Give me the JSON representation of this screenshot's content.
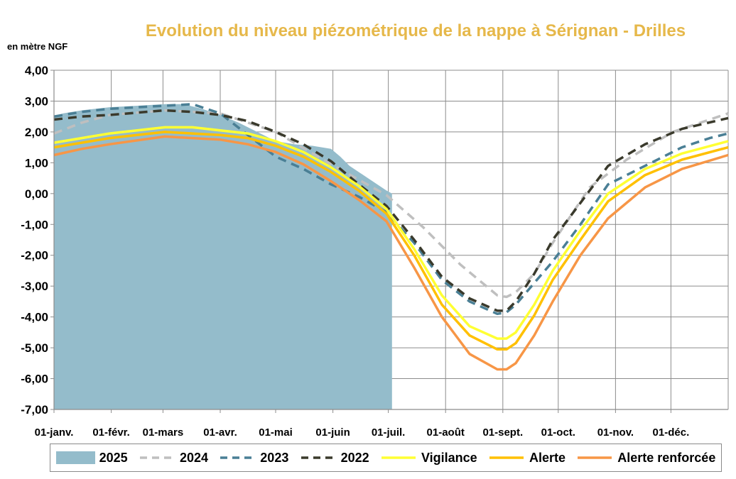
{
  "chart_data": {
    "type": "area",
    "title": "Evolution du niveau piézométrique de la nappe à Sérignan  - Drilles",
    "ylabel": "en mètre NGF",
    "ylim": [
      -7,
      4
    ],
    "xlim": [
      0,
      365
    ],
    "grid": true,
    "legend_position": "bottom",
    "yticks": [
      "4,00",
      "3,00",
      "2,00",
      "1,00",
      "0,00",
      "-1,00",
      "-2,00",
      "-3,00",
      "-4,00",
      "-5,00",
      "-6,00",
      "-7,00"
    ],
    "xticks": [
      {
        "day": 0,
        "label": "01-janv."
      },
      {
        "day": 31,
        "label": "01-févr."
      },
      {
        "day": 59,
        "label": "01-mars"
      },
      {
        "day": 90,
        "label": "01-avr."
      },
      {
        "day": 120,
        "label": "01-mai"
      },
      {
        "day": 151,
        "label": "01-juin"
      },
      {
        "day": 181,
        "label": "01-juil."
      },
      {
        "day": 212,
        "label": "01-août"
      },
      {
        "day": 243,
        "label": "01-sept."
      },
      {
        "day": 273,
        "label": "01-oct."
      },
      {
        "day": 304,
        "label": "01-nov."
      },
      {
        "day": 334,
        "label": "01-déc."
      }
    ],
    "series": [
      {
        "name": "2025",
        "kind": "area",
        "color": "#94bccb",
        "x": [
          0,
          5,
          15,
          30,
          45,
          60,
          70,
          80,
          90,
          100,
          110,
          120,
          130,
          140,
          150,
          155,
          160,
          170,
          180,
          183
        ],
        "y": [
          2.5,
          2.6,
          2.7,
          2.8,
          2.85,
          2.9,
          2.9,
          2.75,
          2.55,
          2.3,
          2.0,
          1.7,
          1.6,
          1.55,
          1.45,
          1.2,
          0.9,
          0.5,
          0.1,
          0.0
        ]
      },
      {
        "name": "2024",
        "kind": "line",
        "dash": "dash",
        "color": "#bfbfbf",
        "x": [
          0,
          15,
          30,
          60,
          90,
          120,
          150,
          180,
          200,
          220,
          240,
          245,
          250,
          260,
          270,
          290,
          310,
          335,
          365
        ],
        "y": [
          1.95,
          2.3,
          2.55,
          2.7,
          2.6,
          2.0,
          0.95,
          -0.05,
          -1.1,
          -2.3,
          -3.3,
          -3.35,
          -3.2,
          -2.6,
          -1.6,
          0.2,
          1.1,
          2.0,
          2.6
        ]
      },
      {
        "name": "2023",
        "kind": "line",
        "dash": "dash",
        "color": "#4a7f95",
        "x": [
          0,
          15,
          30,
          60,
          75,
          90,
          105,
          120,
          135,
          150,
          165,
          180,
          195,
          210,
          225,
          240,
          245,
          250,
          260,
          270,
          285,
          300,
          320,
          340,
          355,
          365
        ],
        "y": [
          2.5,
          2.65,
          2.75,
          2.85,
          2.9,
          2.6,
          1.9,
          1.2,
          0.8,
          0.3,
          -0.1,
          -0.6,
          -1.6,
          -2.8,
          -3.5,
          -3.9,
          -3.85,
          -3.6,
          -2.9,
          -2.2,
          -1.0,
          0.3,
          0.9,
          1.5,
          1.8,
          1.95
        ]
      },
      {
        "name": "2022",
        "kind": "line",
        "dash": "dash",
        "color": "#3a3a2c",
        "x": [
          0,
          15,
          30,
          60,
          75,
          90,
          105,
          120,
          135,
          150,
          165,
          180,
          195,
          210,
          225,
          240,
          245,
          250,
          260,
          270,
          285,
          300,
          320,
          340,
          365
        ],
        "y": [
          2.4,
          2.5,
          2.55,
          2.7,
          2.65,
          2.55,
          2.35,
          2.0,
          1.6,
          1.05,
          0.3,
          -0.4,
          -1.5,
          -2.7,
          -3.4,
          -3.8,
          -3.8,
          -3.5,
          -2.6,
          -1.5,
          -0.3,
          0.9,
          1.6,
          2.1,
          2.45
        ]
      },
      {
        "name": "Vigilance",
        "kind": "line",
        "dash": "solid",
        "color": "#ffff33",
        "x": [
          0,
          15,
          30,
          60,
          75,
          90,
          105,
          120,
          135,
          150,
          165,
          180,
          195,
          210,
          225,
          240,
          245,
          250,
          260,
          270,
          285,
          300,
          320,
          340,
          365
        ],
        "y": [
          1.65,
          1.8,
          1.95,
          2.15,
          2.15,
          2.05,
          1.95,
          1.7,
          1.35,
          0.85,
          0.25,
          -0.5,
          -1.8,
          -3.3,
          -4.3,
          -4.7,
          -4.7,
          -4.5,
          -3.6,
          -2.5,
          -1.2,
          0.0,
          0.8,
          1.3,
          1.7
        ]
      },
      {
        "name": "Alerte",
        "kind": "line",
        "dash": "solid",
        "color": "#ffc000",
        "x": [
          0,
          15,
          30,
          60,
          75,
          90,
          105,
          120,
          135,
          150,
          165,
          180,
          195,
          210,
          225,
          240,
          245,
          250,
          260,
          270,
          285,
          300,
          320,
          340,
          365
        ],
        "y": [
          1.5,
          1.65,
          1.8,
          2.0,
          1.95,
          1.9,
          1.8,
          1.55,
          1.2,
          0.7,
          0.1,
          -0.65,
          -2.0,
          -3.6,
          -4.6,
          -5.05,
          -5.05,
          -4.85,
          -3.95,
          -2.8,
          -1.5,
          -0.25,
          0.6,
          1.1,
          1.5
        ]
      },
      {
        "name": "Alerte renforcée",
        "kind": "line",
        "dash": "solid",
        "color": "#f79646",
        "x": [
          0,
          15,
          30,
          60,
          75,
          90,
          105,
          120,
          135,
          150,
          165,
          180,
          195,
          210,
          225,
          240,
          245,
          250,
          260,
          270,
          285,
          300,
          320,
          340,
          365
        ],
        "y": [
          1.25,
          1.45,
          1.6,
          1.85,
          1.8,
          1.75,
          1.6,
          1.35,
          0.95,
          0.4,
          -0.2,
          -0.9,
          -2.4,
          -4.0,
          -5.2,
          -5.7,
          -5.7,
          -5.5,
          -4.6,
          -3.5,
          -2.0,
          -0.8,
          0.2,
          0.8,
          1.25
        ]
      }
    ]
  }
}
